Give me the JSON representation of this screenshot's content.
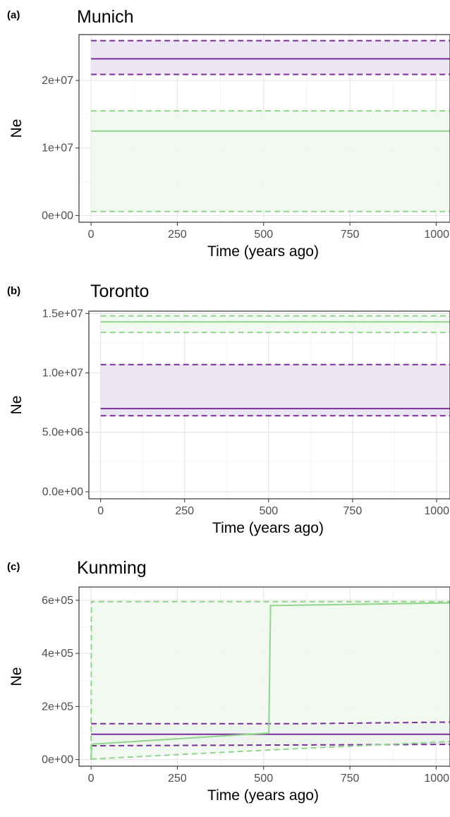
{
  "chart_data": [
    {
      "type": "line",
      "panel_tag": "(a)",
      "title": "Munich",
      "xlabel": "Time (years ago)",
      "ylabel": "Ne",
      "xlim": [
        -35,
        1040
      ],
      "ylim": [
        -1000000,
        26800000
      ],
      "x_ticks": [
        0,
        250,
        500,
        750,
        1000
      ],
      "x_tick_labels": [
        "0",
        "250",
        "500",
        "750",
        "1000"
      ],
      "y_ticks": [
        0,
        10000000,
        20000000
      ],
      "y_tick_labels": [
        "0e+00",
        "1e+07",
        "2e+07"
      ],
      "grid": true,
      "series": [
        {
          "color": "#7b2d9e",
          "fill": "#e9e0f1",
          "median": [
            [
              0,
              23200000
            ],
            [
              1040,
              23200000
            ]
          ],
          "upper": [
            [
              0,
              25900000
            ],
            [
              1040,
              25900000
            ]
          ],
          "lower": [
            [
              0,
              20900000
            ],
            [
              1040,
              20900000
            ]
          ]
        },
        {
          "color": "#8fd68a",
          "fill": "#eef8ed",
          "median": [
            [
              0,
              12500000
            ],
            [
              1040,
              12500000
            ]
          ],
          "upper": [
            [
              0,
              15500000
            ],
            [
              1040,
              15500000
            ]
          ],
          "lower": [
            [
              0,
              600000
            ],
            [
              1040,
              600000
            ]
          ]
        }
      ]
    },
    {
      "type": "line",
      "panel_tag": "(b)",
      "title": "Toronto",
      "xlabel": "Time (years ago)",
      "ylabel": "Ne",
      "xlim": [
        -35,
        1040
      ],
      "ylim": [
        -600000,
        15200000
      ],
      "x_ticks": [
        0,
        250,
        500,
        750,
        1000
      ],
      "x_tick_labels": [
        "0",
        "250",
        "500",
        "750",
        "1000"
      ],
      "y_ticks": [
        0,
        5000000,
        10000000,
        15000000
      ],
      "y_tick_labels": [
        "0.0e+00",
        "5.0e+06",
        "1.0e+07",
        "1.5e+07"
      ],
      "grid": true,
      "series": [
        {
          "color": "#7b2d9e",
          "fill": "#e9e0f1",
          "median": [
            [
              0,
              7000000
            ],
            [
              1040,
              7000000
            ]
          ],
          "upper": [
            [
              0,
              10700000
            ],
            [
              1040,
              10700000
            ]
          ],
          "lower": [
            [
              0,
              6400000
            ],
            [
              1040,
              6400000
            ]
          ]
        },
        {
          "color": "#8fd68a",
          "fill": "#eef8ed",
          "median": [
            [
              0,
              14300000
            ],
            [
              1040,
              14300000
            ]
          ],
          "upper": [
            [
              0,
              14800000
            ],
            [
              1040,
              14800000
            ]
          ],
          "lower": [
            [
              0,
              13400000
            ],
            [
              1040,
              13400000
            ]
          ]
        }
      ]
    },
    {
      "type": "line",
      "panel_tag": "(c)",
      "title": "Kunming",
      "xlabel": "Time (years ago)",
      "ylabel": "Ne",
      "xlim": [
        -35,
        1040
      ],
      "ylim": [
        -25000,
        650000
      ],
      "x_ticks": [
        0,
        250,
        500,
        750,
        1000
      ],
      "x_tick_labels": [
        "0",
        "250",
        "500",
        "750",
        "1000"
      ],
      "y_ticks": [
        0,
        200000,
        400000,
        600000
      ],
      "y_tick_labels": [
        "0e+00",
        "2e+05",
        "4e+05",
        "6e+05"
      ],
      "grid": true,
      "series": [
        {
          "color": "#7b2d9e",
          "fill": "#e9e0f1",
          "median": [
            [
              0,
              95000
            ],
            [
              1040,
              95000
            ]
          ],
          "upper": [
            [
              0,
              135000
            ],
            [
              600,
              135000
            ],
            [
              1040,
              141000
            ]
          ],
          "lower": [
            [
              0,
              52000
            ],
            [
              1040,
              57000
            ]
          ]
        },
        {
          "color": "#8fd68a",
          "fill": "#eef8ed",
          "median": [
            [
              0,
              0
            ],
            [
              2,
              58000
            ],
            [
              515,
              100000
            ],
            [
              520,
              580000
            ],
            [
              1040,
              590000
            ]
          ],
          "upper": [
            [
              0,
              0
            ],
            [
              1,
              595000
            ],
            [
              1040,
              595000
            ]
          ],
          "lower": [
            [
              0,
              0
            ],
            [
              3,
              2000
            ],
            [
              500,
              35000
            ],
            [
              1040,
              68000
            ]
          ]
        }
      ]
    }
  ]
}
